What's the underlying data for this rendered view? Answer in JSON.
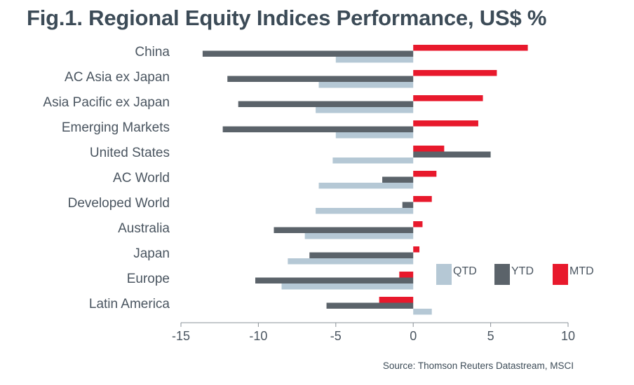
{
  "title": "Fig.1. Regional Equity Indices Performance, US$ %",
  "source": "Source: Thomson Reuters Datastream, MSCI",
  "chart_data": {
    "type": "bar",
    "orientation": "horizontal",
    "title": "Fig.1. Regional Equity Indices Performance, US$ %",
    "categories": [
      "China",
      "AC Asia ex Japan",
      "Asia Pacific ex Japan",
      "Emerging Markets",
      "United States",
      "AC World",
      "Developed World",
      "Australia",
      "Japan",
      "Europe",
      "Latin America"
    ],
    "series": [
      {
        "name": "MTD",
        "color": "#e8192c",
        "values": [
          7.4,
          5.4,
          4.5,
          4.2,
          2.0,
          1.5,
          1.2,
          0.6,
          0.4,
          -0.9,
          -2.2
        ]
      },
      {
        "name": "YTD",
        "color": "#5b636a",
        "values": [
          -13.6,
          -12.0,
          -11.3,
          -12.3,
          5.0,
          -2.0,
          -0.7,
          -9.0,
          -6.7,
          -10.2,
          -5.6
        ]
      },
      {
        "name": "QTD",
        "color": "#b5c8d5",
        "values": [
          -5.0,
          -6.1,
          -6.3,
          -5.0,
          -5.2,
          -6.1,
          -6.3,
          -7.0,
          -8.1,
          -8.5,
          1.2
        ]
      }
    ],
    "xlim": [
      -15,
      10
    ],
    "xticks": [
      -15,
      -10,
      -5,
      0,
      5,
      10
    ],
    "xtick_labels": [
      "-15",
      "-10",
      "-5",
      "0",
      "5",
      "10"
    ],
    "legend": [
      "QTD",
      "YTD",
      "MTD"
    ],
    "legend_position": "lower-right",
    "grid": false,
    "xlabel": "",
    "ylabel": ""
  }
}
